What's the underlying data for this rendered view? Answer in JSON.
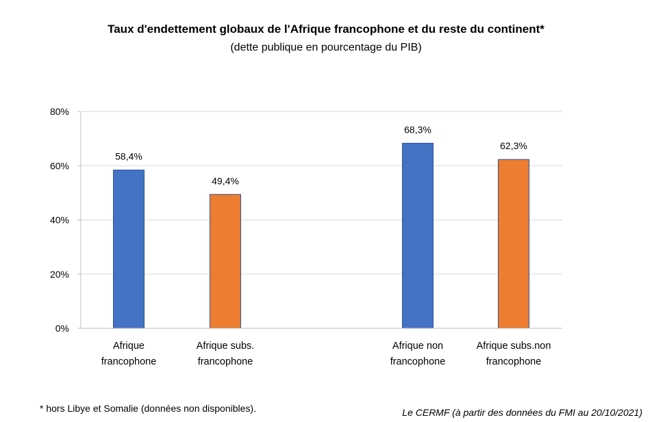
{
  "title": "Taux d'endettement globaux de l'Afrique francophone et du reste du continent*",
  "subtitle": "(dette publique en pourcentage du PIB)",
  "footnote": "* hors Libye et Somalie (données non disponibles).",
  "source": "Le CERMF (à partir des données du FMI au 20/10/2021)",
  "chart_data": {
    "type": "bar",
    "categories": [
      [
        "Afrique",
        "francophone"
      ],
      [
        "Afrique subs.",
        "francophone"
      ],
      [
        "Afrique non",
        "francophone"
      ],
      [
        "Afrique subs.non",
        "francophone"
      ]
    ],
    "values": [
      58.4,
      49.4,
      68.3,
      62.3
    ],
    "data_labels": [
      "58,4%",
      "49,4%",
      "68,3%",
      "62,3%"
    ],
    "colors": [
      "#4472C4",
      "#ED7D31",
      "#4472C4",
      "#ED7D31"
    ],
    "ylim": [
      0,
      80
    ],
    "yticks": [
      "0%",
      "20%",
      "40%",
      "60%",
      "80%"
    ],
    "grid": true
  }
}
